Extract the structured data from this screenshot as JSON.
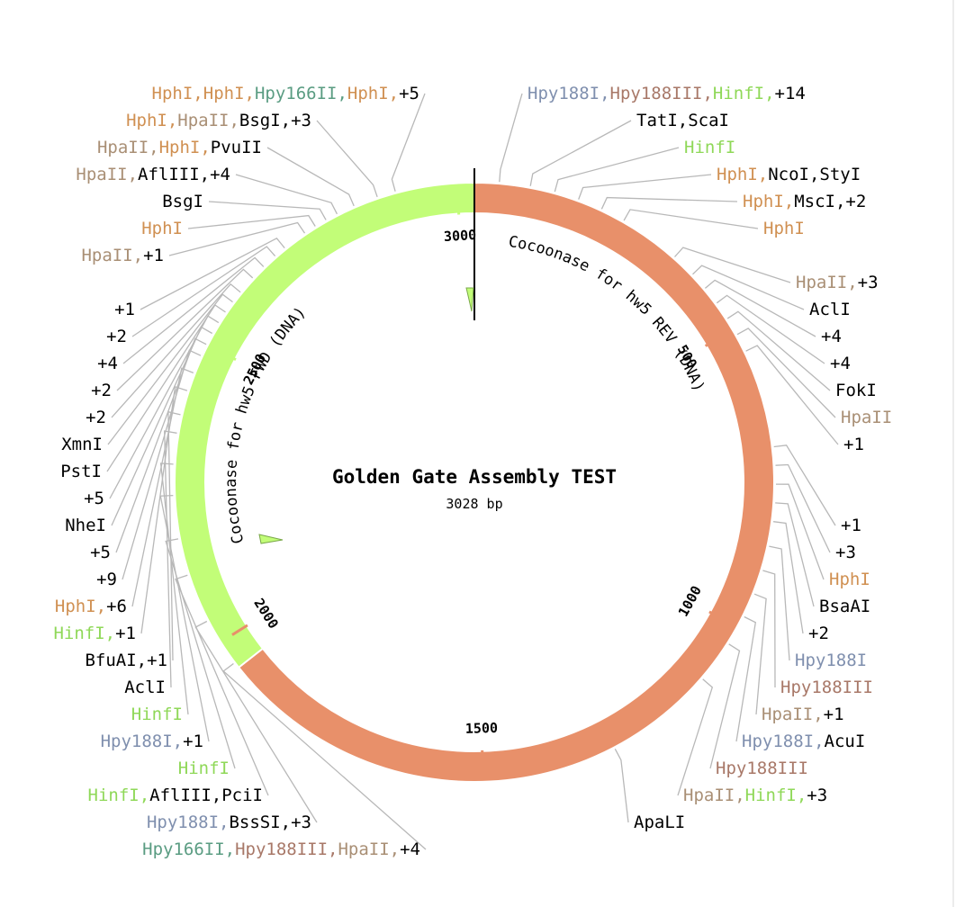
{
  "plasmid": {
    "name": "Golden Gate Assembly TEST",
    "length_label": "3028 bp",
    "length": 3028,
    "tick_labels": [
      "500",
      "1000",
      "1500",
      "2000",
      "2500",
      "3000"
    ]
  },
  "colors": {
    "backbone_orange": "#e8906a",
    "feature_green": "#c2fd78",
    "HphI": "#d09052",
    "HpaII": "#a98f75",
    "Hpy188I": "#7f8fae",
    "Hpy188III": "#a87868",
    "HinfI": "#8fd858",
    "Hpy166II": "#5a9c82",
    "default": "#000000"
  },
  "features": [
    {
      "name": "Cocoonase for hw5 REV (DNA)",
      "start": 0,
      "end": 1950,
      "color": "#e8906a"
    },
    {
      "name": "Cocoonase for hw5 FWD (DNA)",
      "start": 1950,
      "end": 3028,
      "color": "#c2fd78"
    }
  ],
  "left_labels": [
    {
      "parts": [
        {
          "t": "HphI,",
          "c": "HphI"
        },
        {
          "t": "HphI,",
          "c": "HphI"
        },
        {
          "t": "Hpy166II,",
          "c": "Hpy166II"
        },
        {
          "t": "HphI,",
          "c": "HphI"
        },
        {
          "t": "+5",
          "c": "default"
        }
      ]
    },
    {
      "parts": [
        {
          "t": "HphI,",
          "c": "HphI"
        },
        {
          "t": "HpaII,",
          "c": "HpaII"
        },
        {
          "t": "BsgI,",
          "c": "default"
        },
        {
          "t": "+3",
          "c": "default"
        }
      ]
    },
    {
      "parts": [
        {
          "t": "HpaII,",
          "c": "HpaII"
        },
        {
          "t": "HphI,",
          "c": "HphI"
        },
        {
          "t": "PvuII",
          "c": "default"
        }
      ]
    },
    {
      "parts": [
        {
          "t": "HpaII,",
          "c": "HpaII"
        },
        {
          "t": "AflIII,",
          "c": "default"
        },
        {
          "t": "+4",
          "c": "default"
        }
      ]
    },
    {
      "parts": [
        {
          "t": "BsgI",
          "c": "default"
        }
      ]
    },
    {
      "parts": [
        {
          "t": "HphI",
          "c": "HphI"
        }
      ]
    },
    {
      "parts": [
        {
          "t": "HpaII,",
          "c": "HpaII"
        },
        {
          "t": "+1",
          "c": "default"
        }
      ]
    },
    {
      "parts": [
        {
          "t": "+1",
          "c": "default"
        }
      ]
    },
    {
      "parts": [
        {
          "t": "+2",
          "c": "default"
        }
      ]
    },
    {
      "parts": [
        {
          "t": "+4",
          "c": "default"
        }
      ]
    },
    {
      "parts": [
        {
          "t": "+2",
          "c": "default"
        }
      ]
    },
    {
      "parts": [
        {
          "t": "+2",
          "c": "default"
        }
      ]
    },
    {
      "parts": [
        {
          "t": "XmnI",
          "c": "default"
        }
      ]
    },
    {
      "parts": [
        {
          "t": "PstI",
          "c": "default"
        }
      ]
    },
    {
      "parts": [
        {
          "t": "+5",
          "c": "default"
        }
      ]
    },
    {
      "parts": [
        {
          "t": "NheI",
          "c": "default"
        }
      ]
    },
    {
      "parts": [
        {
          "t": "+5",
          "c": "default"
        }
      ]
    },
    {
      "parts": [
        {
          "t": "+9",
          "c": "default"
        }
      ]
    },
    {
      "parts": [
        {
          "t": "HphI,",
          "c": "HphI"
        },
        {
          "t": "+6",
          "c": "default"
        }
      ]
    },
    {
      "parts": [
        {
          "t": "HinfI,",
          "c": "HinfI"
        },
        {
          "t": "+1",
          "c": "default"
        }
      ]
    },
    {
      "parts": [
        {
          "t": "BfuAI,",
          "c": "default"
        },
        {
          "t": "+1",
          "c": "default"
        }
      ]
    },
    {
      "parts": [
        {
          "t": "AclI",
          "c": "default"
        }
      ]
    },
    {
      "parts": [
        {
          "t": "HinfI",
          "c": "HinfI"
        }
      ]
    },
    {
      "parts": [
        {
          "t": "Hpy188I,",
          "c": "Hpy188I"
        },
        {
          "t": "+1",
          "c": "default"
        }
      ]
    },
    {
      "parts": [
        {
          "t": "HinfI",
          "c": "HinfI"
        }
      ]
    },
    {
      "parts": [
        {
          "t": "HinfI,",
          "c": "HinfI"
        },
        {
          "t": "AflIII,",
          "c": "default"
        },
        {
          "t": "PciI",
          "c": "default"
        }
      ]
    },
    {
      "parts": [
        {
          "t": "Hpy188I,",
          "c": "Hpy188I"
        },
        {
          "t": "BssSI,",
          "c": "default"
        },
        {
          "t": "+3",
          "c": "default"
        }
      ]
    },
    {
      "parts": [
        {
          "t": "Hpy166II,",
          "c": "Hpy166II"
        },
        {
          "t": "Hpy188III,",
          "c": "Hpy188III"
        },
        {
          "t": "HpaII,",
          "c": "HpaII"
        },
        {
          "t": "+4",
          "c": "default"
        }
      ]
    }
  ],
  "right_labels": [
    {
      "parts": [
        {
          "t": "Hpy188I,",
          "c": "Hpy188I"
        },
        {
          "t": "Hpy188III,",
          "c": "Hpy188III"
        },
        {
          "t": "HinfI,",
          "c": "HinfI"
        },
        {
          "t": "+14",
          "c": "default"
        }
      ]
    },
    {
      "parts": [
        {
          "t": "TatI,",
          "c": "default"
        },
        {
          "t": "ScaI",
          "c": "default"
        }
      ]
    },
    {
      "parts": [
        {
          "t": "HinfI",
          "c": "HinfI"
        }
      ]
    },
    {
      "parts": [
        {
          "t": "HphI,",
          "c": "HphI"
        },
        {
          "t": "NcoI,",
          "c": "default"
        },
        {
          "t": "StyI",
          "c": "default"
        }
      ]
    },
    {
      "parts": [
        {
          "t": "HphI,",
          "c": "HphI"
        },
        {
          "t": "MscI,",
          "c": "default"
        },
        {
          "t": "+2",
          "c": "default"
        }
      ]
    },
    {
      "parts": [
        {
          "t": "HphI",
          "c": "HphI"
        }
      ]
    },
    {
      "parts": [
        {
          "t": "HpaII,",
          "c": "HpaII"
        },
        {
          "t": "+3",
          "c": "default"
        }
      ]
    },
    {
      "parts": [
        {
          "t": "AclI",
          "c": "default"
        }
      ]
    },
    {
      "parts": [
        {
          "t": "+4",
          "c": "default"
        }
      ]
    },
    {
      "parts": [
        {
          "t": "+4",
          "c": "default"
        }
      ]
    },
    {
      "parts": [
        {
          "t": "FokI",
          "c": "default"
        }
      ]
    },
    {
      "parts": [
        {
          "t": "HpaII",
          "c": "HpaII"
        }
      ]
    },
    {
      "parts": [
        {
          "t": "+1",
          "c": "default"
        }
      ]
    },
    {
      "parts": [
        {
          "t": "+1",
          "c": "default"
        }
      ]
    },
    {
      "parts": [
        {
          "t": "+3",
          "c": "default"
        }
      ]
    },
    {
      "parts": [
        {
          "t": "HphI",
          "c": "HphI"
        }
      ]
    },
    {
      "parts": [
        {
          "t": "BsaAI",
          "c": "default"
        }
      ]
    },
    {
      "parts": [
        {
          "t": "+2",
          "c": "default"
        }
      ]
    },
    {
      "parts": [
        {
          "t": "Hpy188I",
          "c": "Hpy188I"
        }
      ]
    },
    {
      "parts": [
        {
          "t": "Hpy188III",
          "c": "Hpy188III"
        }
      ]
    },
    {
      "parts": [
        {
          "t": "HpaII,",
          "c": "HpaII"
        },
        {
          "t": "+1",
          "c": "default"
        }
      ]
    },
    {
      "parts": [
        {
          "t": "Hpy188I,",
          "c": "Hpy188I"
        },
        {
          "t": "AcuI",
          "c": "default"
        }
      ]
    },
    {
      "parts": [
        {
          "t": "Hpy188III",
          "c": "Hpy188III"
        }
      ]
    },
    {
      "parts": [
        {
          "t": "HpaII,",
          "c": "HpaII"
        },
        {
          "t": "HinfI,",
          "c": "HinfI"
        },
        {
          "t": "+3",
          "c": "default"
        }
      ]
    },
    {
      "parts": [
        {
          "t": "ApaLI",
          "c": "default"
        }
      ]
    }
  ]
}
